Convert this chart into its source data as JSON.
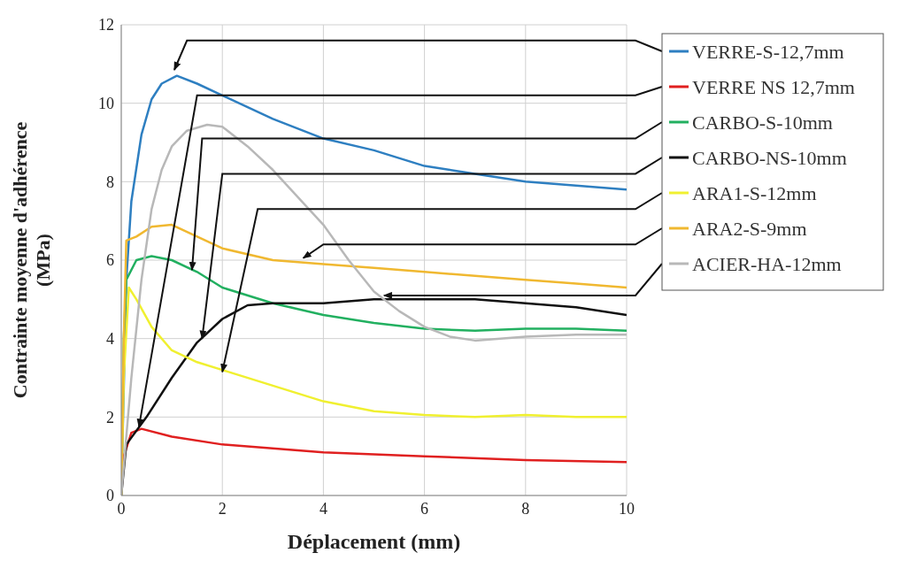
{
  "chart_data": {
    "type": "line",
    "xlabel": "Déplacement (mm)",
    "ylabel": "Contrainte moyenne d'adhérence (MPa)",
    "xlim": [
      0,
      10
    ],
    "ylim": [
      0,
      12
    ],
    "xticks": [
      0,
      2,
      4,
      6,
      8,
      10
    ],
    "yticks": [
      0,
      2,
      4,
      6,
      8,
      10,
      12
    ],
    "grid": true,
    "legend": "right",
    "marker": "none",
    "line_style": "solid",
    "series": [
      {
        "name": "VERRE-S-12,7mm",
        "color": "#2e7fc1",
        "x": [
          0,
          0.1,
          0.2,
          0.4,
          0.6,
          0.8,
          1.1,
          1.5,
          2,
          3,
          4,
          5,
          6,
          7,
          8,
          9,
          10
        ],
        "values": [
          0,
          5.5,
          7.5,
          9.2,
          10.1,
          10.5,
          10.7,
          10.5,
          10.2,
          9.6,
          9.1,
          8.8,
          8.4,
          8.2,
          8,
          7.9,
          7.8
        ]
      },
      {
        "name": "VERRE NS 12,7mm",
        "color": "#e02020",
        "x": [
          0,
          0.05,
          0.2,
          0.4,
          1,
          2,
          4,
          6,
          8,
          10
        ],
        "values": [
          0,
          1,
          1.6,
          1.7,
          1.5,
          1.3,
          1.1,
          1,
          0.9,
          0.85
        ]
      },
      {
        "name": "CARBO-S-10mm",
        "color": "#22b060",
        "x": [
          0,
          0.05,
          0.1,
          0.3,
          0.6,
          1,
          1.5,
          2,
          3,
          4,
          5,
          6,
          7,
          8,
          9,
          10
        ],
        "values": [
          0,
          4,
          5.5,
          6,
          6.1,
          6,
          5.7,
          5.3,
          4.9,
          4.6,
          4.4,
          4.25,
          4.2,
          4.25,
          4.25,
          4.2
        ]
      },
      {
        "name": "CARBO-NS-10mm",
        "color": "#111111",
        "x": [
          0,
          0.1,
          0.5,
          1,
          1.5,
          2,
          2.5,
          3,
          4,
          5,
          6,
          7,
          8,
          9,
          10
        ],
        "values": [
          0,
          1.3,
          2,
          3,
          3.9,
          4.5,
          4.85,
          4.9,
          4.9,
          5,
          5,
          5,
          4.9,
          4.8,
          4.6
        ]
      },
      {
        "name": "ARA1-S-12mm",
        "color": "#f0f030",
        "x": [
          0,
          0.05,
          0.15,
          0.3,
          0.6,
          1,
          1.5,
          2,
          3,
          4,
          5,
          6,
          7,
          8,
          9,
          10
        ],
        "values": [
          0,
          3,
          5.3,
          5,
          4.3,
          3.7,
          3.4,
          3.2,
          2.8,
          2.4,
          2.15,
          2.05,
          2,
          2.05,
          2,
          2
        ]
      },
      {
        "name": "ARA2-S-9mm",
        "color": "#f0b830",
        "x": [
          0,
          0.05,
          0.1,
          0.3,
          0.6,
          1,
          1.5,
          2,
          3,
          4,
          5,
          6,
          7,
          8,
          9,
          10
        ],
        "values": [
          0,
          4,
          6.5,
          6.6,
          6.85,
          6.9,
          6.6,
          6.3,
          6,
          5.9,
          5.8,
          5.7,
          5.6,
          5.5,
          5.4,
          5.3
        ]
      },
      {
        "name": "ACIER-HA-12mm",
        "color": "#b8b8b8",
        "x": [
          0,
          0.2,
          0.4,
          0.6,
          0.8,
          1,
          1.3,
          1.7,
          2,
          2.5,
          3,
          3.5,
          4,
          4.5,
          5,
          5.5,
          6,
          6.5,
          7,
          7.5,
          8,
          9,
          10
        ],
        "values": [
          0,
          3,
          5.5,
          7.3,
          8.3,
          8.9,
          9.3,
          9.45,
          9.4,
          8.9,
          8.3,
          7.6,
          6.9,
          6,
          5.2,
          4.7,
          4.3,
          4.05,
          3.95,
          4,
          4.05,
          4.1,
          4.1
        ]
      }
    ]
  }
}
